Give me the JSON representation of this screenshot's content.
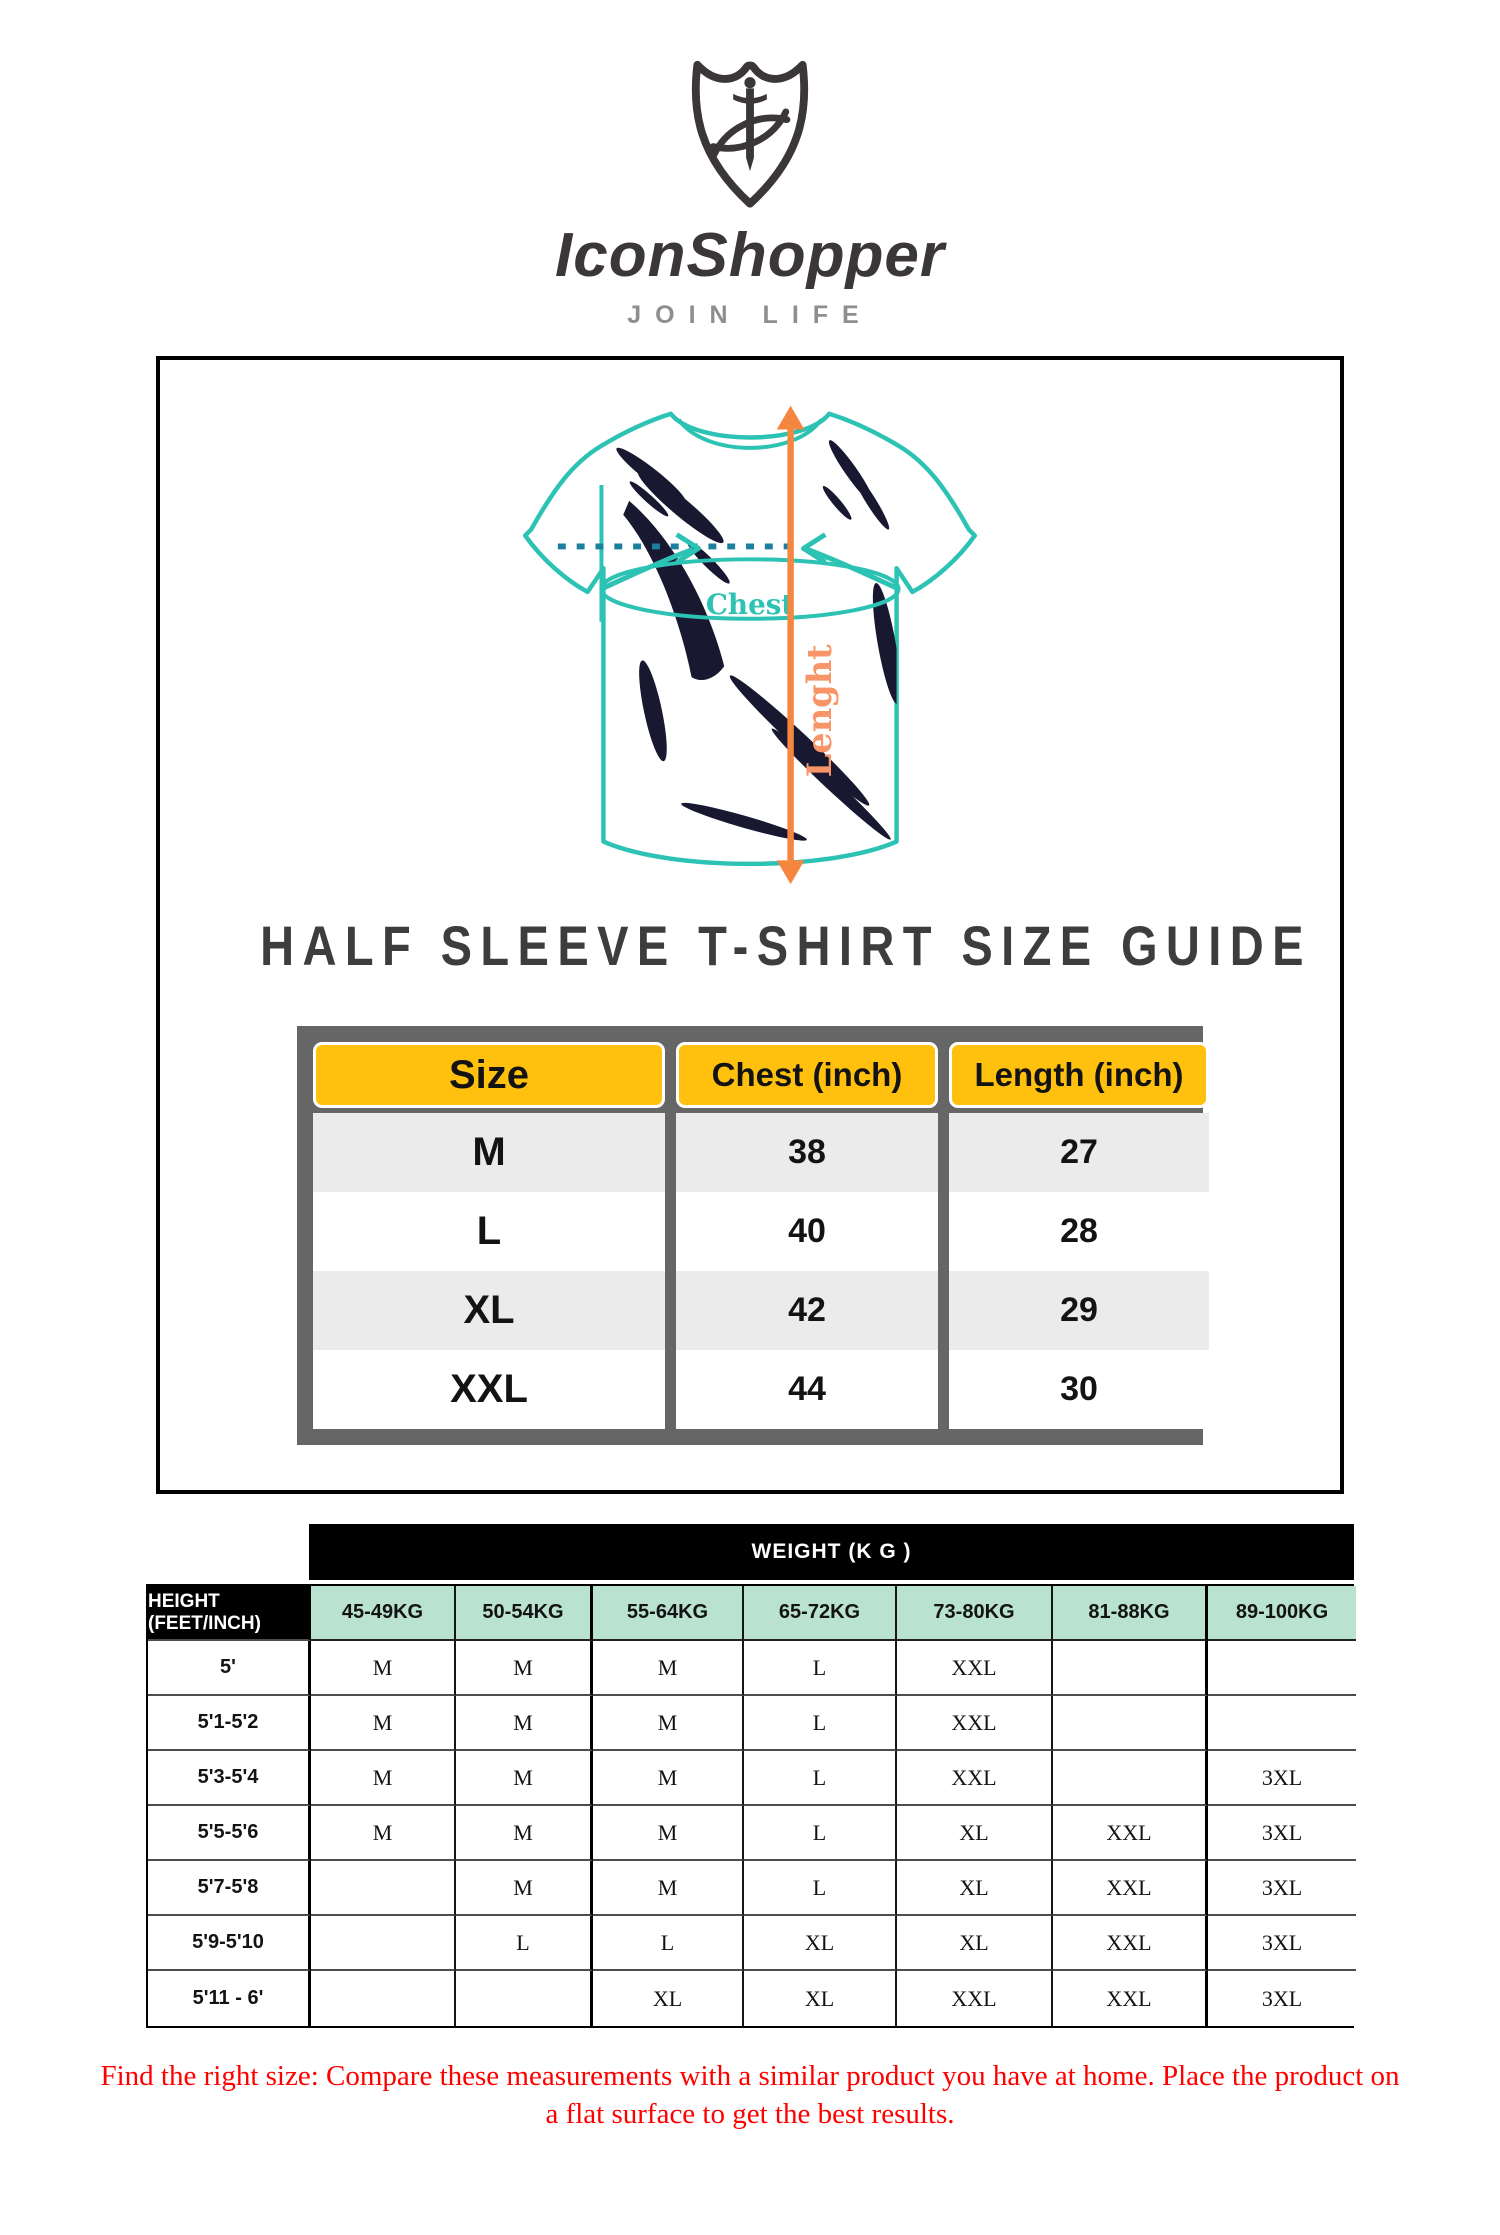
{
  "brand": {
    "name": "IconShopper",
    "tagline": "JOIN LIFE"
  },
  "diagram": {
    "chest_label": "Chest",
    "length_label": "Lenght"
  },
  "size_guide": {
    "title": "HALF SLEEVE T-SHIRT SIZE GUIDE",
    "columns": [
      "Size",
      "Chest (inch)",
      "Length (inch)"
    ],
    "rows": [
      [
        "M",
        "38",
        "27"
      ],
      [
        "L",
        "40",
        "28"
      ],
      [
        "XL",
        "42",
        "29"
      ],
      [
        "XXL",
        "44",
        "30"
      ]
    ]
  },
  "matrix": {
    "weight_header": "WEIGHT (K G )",
    "height_header": "HEIGHT (FEET/INCH)",
    "weight_columns": [
      "45-49KG",
      "50-54KG",
      "55-64KG",
      "65-72KG",
      "73-80KG",
      "81-88KG",
      "89-100KG"
    ],
    "rows": [
      {
        "height": "5'",
        "sizes": [
          "M",
          "M",
          "M",
          "L",
          "XXL",
          "",
          ""
        ]
      },
      {
        "height": "5'1-5'2",
        "sizes": [
          "M",
          "M",
          "M",
          "L",
          "XXL",
          "",
          ""
        ]
      },
      {
        "height": "5'3-5'4",
        "sizes": [
          "M",
          "M",
          "M",
          "L",
          "XXL",
          "",
          "3XL"
        ]
      },
      {
        "height": "5'5-5'6",
        "sizes": [
          "M",
          "M",
          "M",
          "L",
          "XL",
          "XXL",
          "3XL"
        ]
      },
      {
        "height": "5'7-5'8",
        "sizes": [
          "",
          "M",
          "M",
          "L",
          "XL",
          "XXL",
          "3XL"
        ]
      },
      {
        "height": "5'9-5'10",
        "sizes": [
          "",
          "L",
          "L",
          "XL",
          "XL",
          "XXL",
          "3XL"
        ]
      },
      {
        "height": "5'11 - 6'",
        "sizes": [
          "",
          "",
          "XL",
          "XL",
          "XXL",
          "XXL",
          "3XL"
        ]
      }
    ]
  },
  "footer_note": "Find the right size: Compare these measurements with a similar product you have at home. Place the product on a flat surface to get the best results.",
  "colors": {
    "teal": "#2cc2b4",
    "dotted_line": "#1b7f9f",
    "orange": "#f5863f",
    "orange_light": "#f89568",
    "yellow_header": "#ffc10e",
    "table_frame_gray": "#666666",
    "row_gray": "#ebebeb",
    "mint_header": "#b9e2d1",
    "footer_red": "#ff0000",
    "brand_dark": "#3b3637"
  }
}
